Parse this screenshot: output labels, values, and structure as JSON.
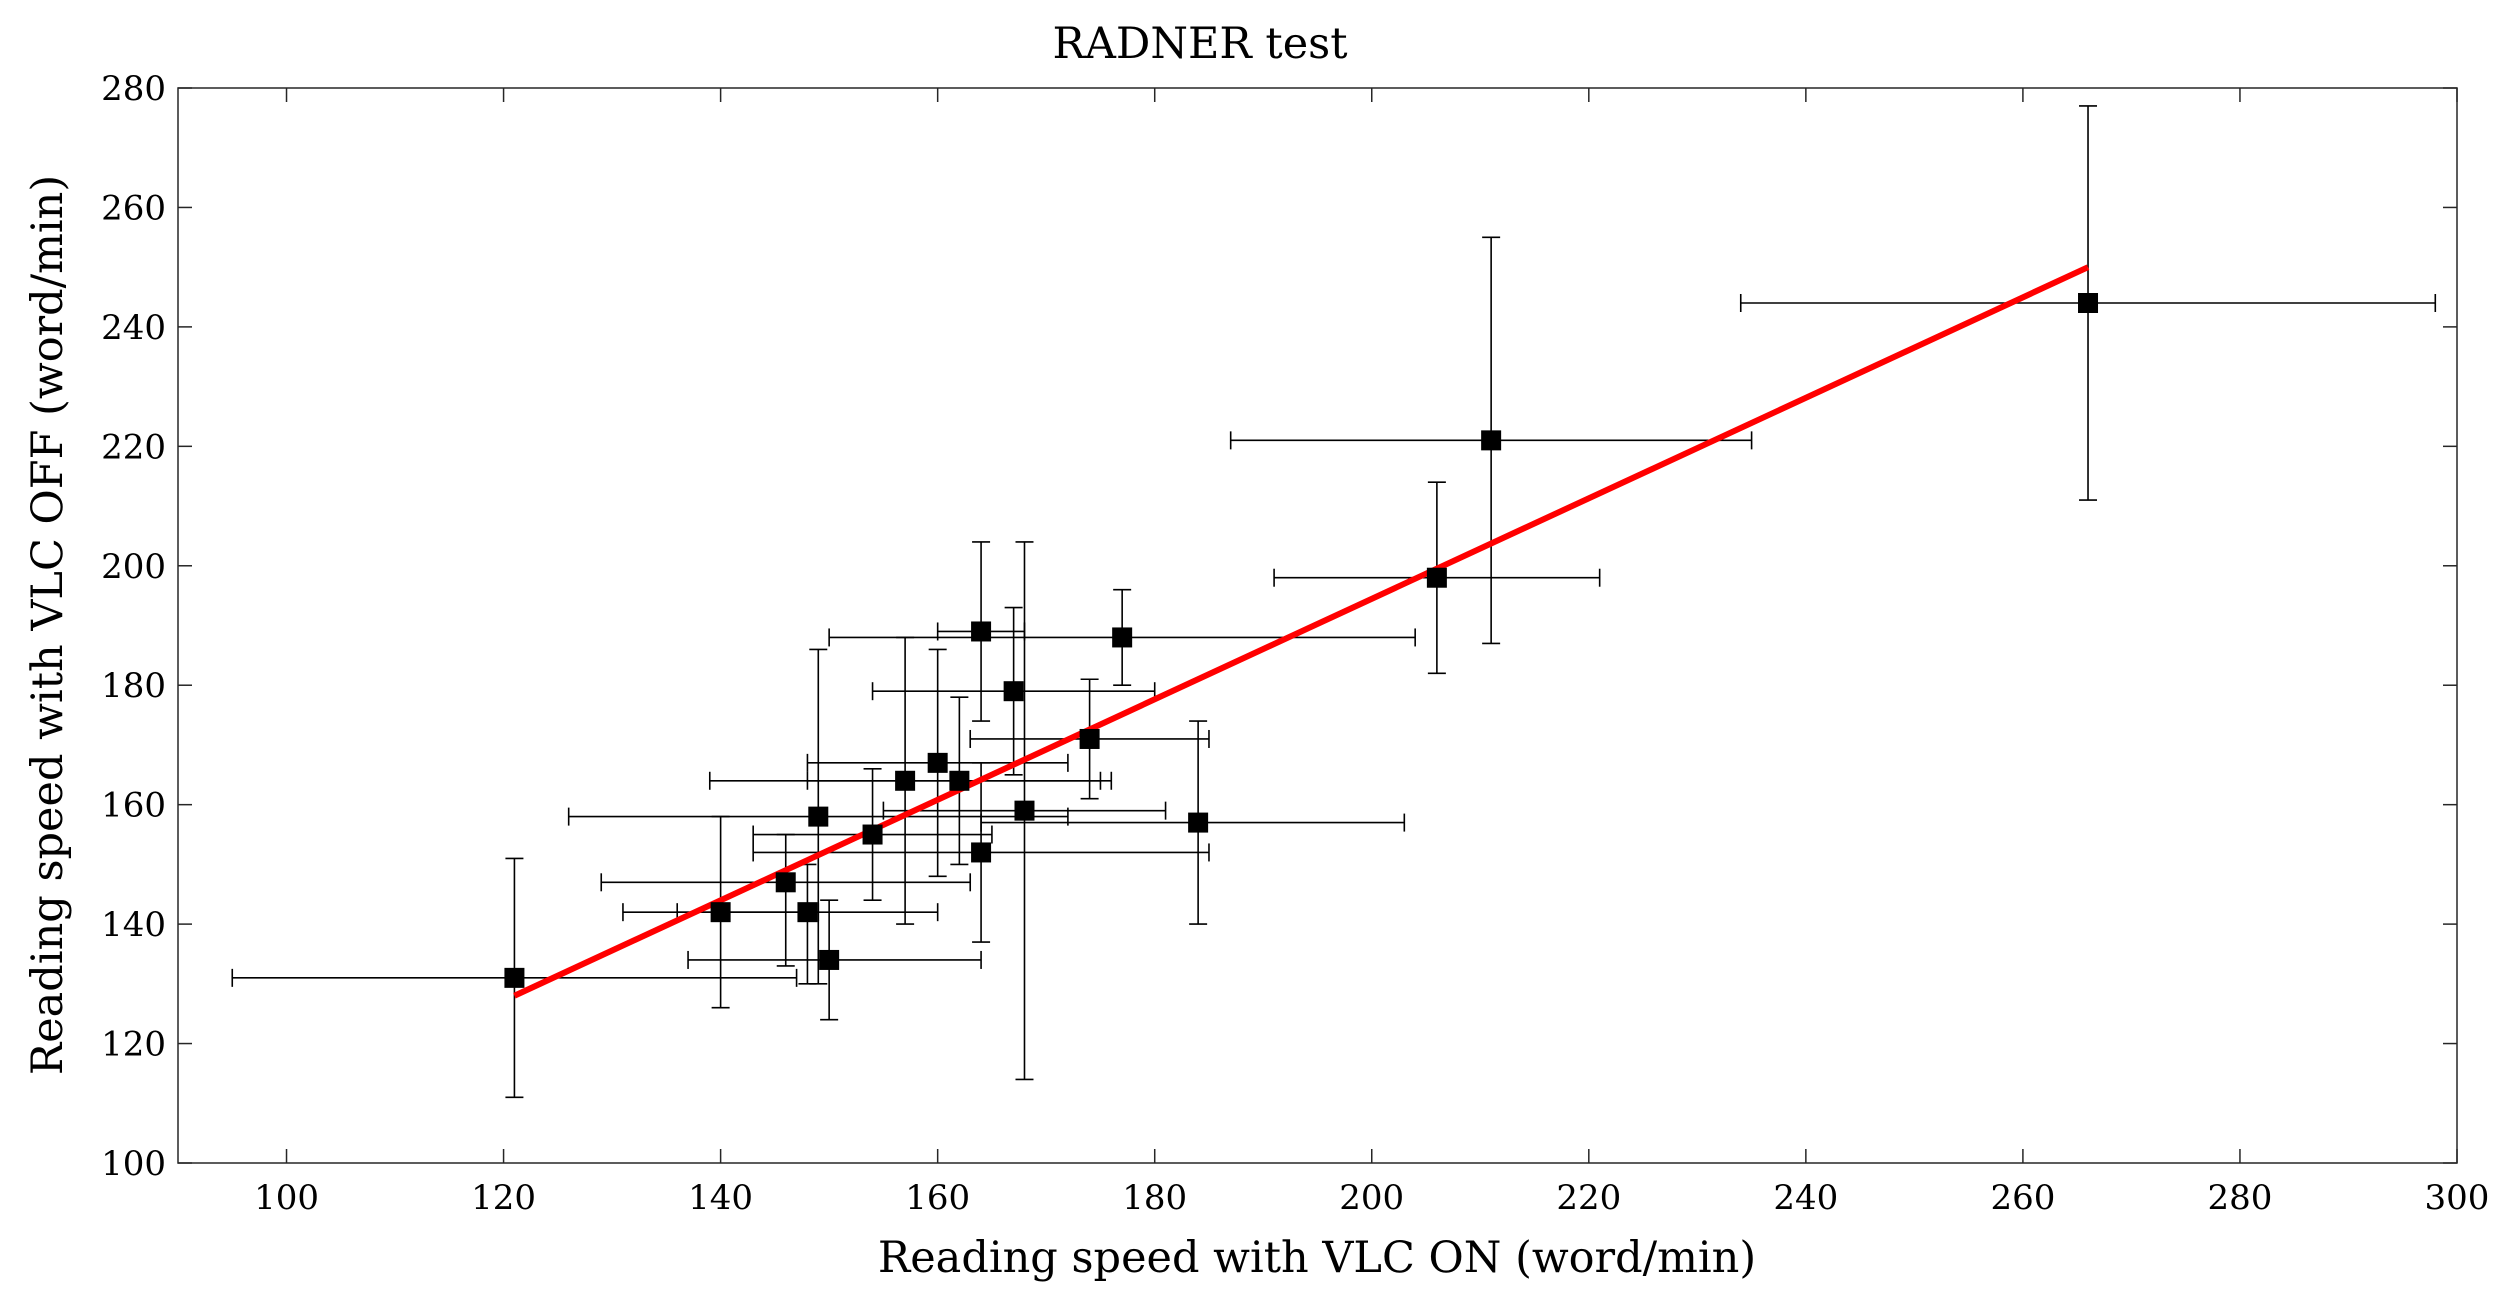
{
  "chart_data": {
    "type": "scatter",
    "title": "RADNER test",
    "xlabel": "Reading speed with VLC ON (word/min)",
    "ylabel": "Reading speed with VLC OFF (word/min)",
    "xlim": [
      90,
      300
    ],
    "ylim": [
      100,
      280
    ],
    "xticks": [
      100,
      120,
      140,
      160,
      180,
      200,
      220,
      240,
      260,
      280,
      300
    ],
    "yticks": [
      100,
      120,
      140,
      160,
      180,
      200,
      220,
      240,
      260,
      280
    ],
    "grid": false,
    "points": [
      {
        "x": 121,
        "y": 131,
        "xerr": [
          95,
          147
        ],
        "yerr": [
          111,
          151
        ]
      },
      {
        "x": 140,
        "y": 142,
        "xerr": [
          131,
          149
        ],
        "yerr": [
          126,
          158
        ]
      },
      {
        "x": 146,
        "y": 147,
        "xerr": [
          129,
          163
        ],
        "yerr": [
          133,
          155
        ]
      },
      {
        "x": 148,
        "y": 142,
        "xerr": [
          136,
          160
        ],
        "yerr": [
          130,
          150
        ]
      },
      {
        "x": 149,
        "y": 158,
        "xerr": [
          126,
          172
        ],
        "yerr": [
          130,
          186
        ]
      },
      {
        "x": 150,
        "y": 134,
        "xerr": [
          137,
          164
        ],
        "yerr": [
          124,
          144
        ]
      },
      {
        "x": 154,
        "y": 155,
        "xerr": [
          143,
          165
        ],
        "yerr": [
          144,
          166
        ]
      },
      {
        "x": 157,
        "y": 164,
        "xerr": [
          139,
          175
        ],
        "yerr": [
          140,
          188
        ]
      },
      {
        "x": 160,
        "y": 167,
        "xerr": [
          148,
          172
        ],
        "yerr": [
          148,
          186
        ]
      },
      {
        "x": 162,
        "y": 164,
        "xerr": [
          148,
          176
        ],
        "yerr": [
          150,
          178
        ]
      },
      {
        "x": 164,
        "y": 152,
        "xerr": [
          143,
          185
        ],
        "yerr": [
          137,
          167
        ]
      },
      {
        "x": 164,
        "y": 189,
        "xerr": [
          160,
          168
        ],
        "yerr": [
          174,
          204
        ]
      },
      {
        "x": 167,
        "y": 179,
        "xerr": [
          154,
          180
        ],
        "yerr": [
          165,
          193
        ]
      },
      {
        "x": 168,
        "y": 159,
        "xerr": [
          155,
          181
        ],
        "yerr": [
          114,
          204
        ]
      },
      {
        "x": 174,
        "y": 171,
        "xerr": [
          163,
          185
        ],
        "yerr": [
          161,
          181
        ]
      },
      {
        "x": 177,
        "y": 188,
        "xerr": [
          150,
          204
        ],
        "yerr": [
          180,
          196
        ]
      },
      {
        "x": 184,
        "y": 157,
        "xerr": [
          164,
          203
        ],
        "yerr": [
          140,
          174
        ]
      },
      {
        "x": 206,
        "y": 198,
        "xerr": [
          191,
          221
        ],
        "yerr": [
          182,
          214
        ]
      },
      {
        "x": 211,
        "y": 221,
        "xerr": [
          187,
          235
        ],
        "yerr": [
          187,
          255
        ]
      },
      {
        "x": 266,
        "y": 244,
        "xerr": [
          234,
          298
        ],
        "yerr": [
          211,
          277
        ]
      }
    ],
    "fit_line": {
      "x": [
        121,
        266
      ],
      "y": [
        128,
        250
      ],
      "color": "#ff0000"
    }
  }
}
